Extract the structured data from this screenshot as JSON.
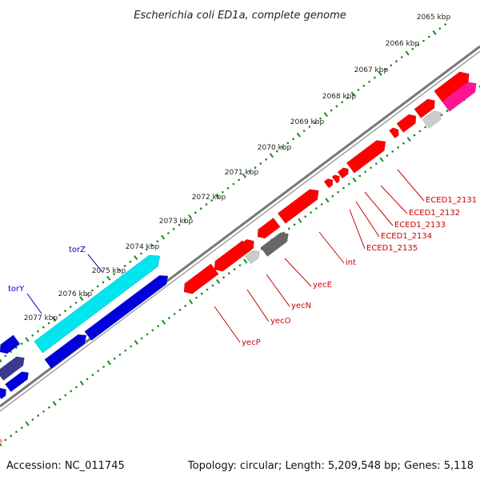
{
  "title": "Escherichia coli ED1a, complete genome",
  "accession": "Accession: NC_011745",
  "summary": "Topology: circular; Length: 5,209,548 bp; Genes: 5,118",
  "ticks": [
    "2065 kbp",
    "2066 kbp",
    "2067 kbp",
    "2068 kbp",
    "2069 kbp",
    "2070 kbp",
    "2071 kbp",
    "2072 kbp",
    "2073 kbp",
    "2074 kbp",
    "2075 kbp",
    "2076 kbp",
    "2077 kbp"
  ],
  "colors": {
    "backbone": "#777777",
    "dots": "#1a8a1a",
    "red": "#ff0000",
    "cyan": "#00e5ee",
    "blue": "#0000dd",
    "purple": "#3a3a8f",
    "grey": "#cccccc",
    "darkgrey": "#666666",
    "pink": "#ff1493",
    "label_red": "#cc0000",
    "label_blue": "#0000cc"
  },
  "genes": [
    {
      "label": "torZ",
      "color": "blue"
    },
    {
      "label": "torY",
      "color": "blue"
    },
    {
      "label": "yecE",
      "color": "red"
    },
    {
      "label": "yecN",
      "color": "red"
    },
    {
      "label": "yecO",
      "color": "red"
    },
    {
      "label": "yecP",
      "color": "red"
    },
    {
      "label": "int",
      "color": "red"
    },
    {
      "label": "ECED1_2131",
      "color": "red"
    },
    {
      "label": "ECED1_2132",
      "color": "red"
    },
    {
      "label": "ECED1_2133",
      "color": "red"
    },
    {
      "label": "ECED1_2134",
      "color": "red"
    },
    {
      "label": "ECED1_2135",
      "color": "red"
    }
  ]
}
